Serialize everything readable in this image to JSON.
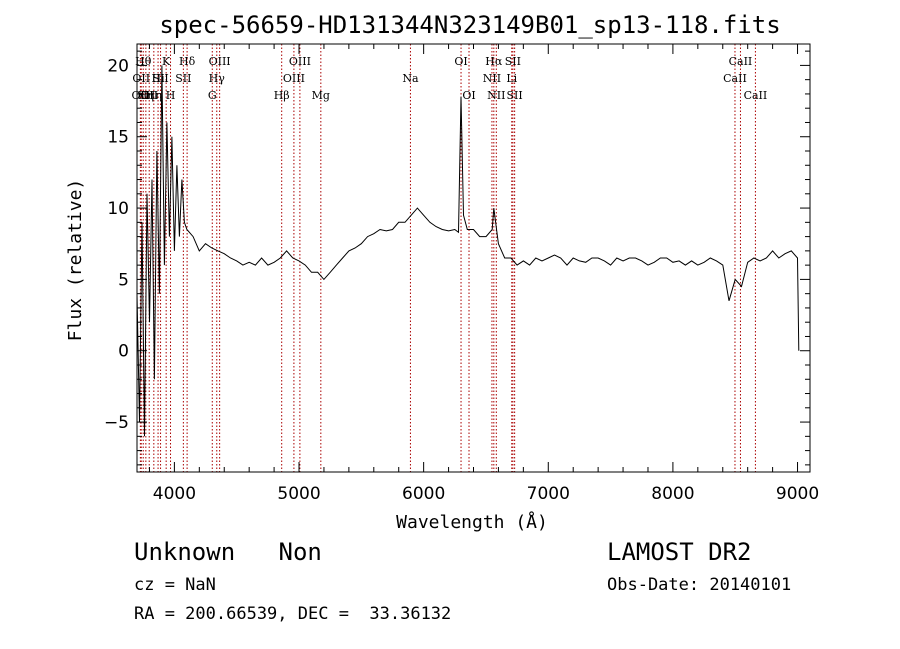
{
  "chart_data": {
    "type": "line",
    "title": "spec-56659-HD131344N323149B01_sp13-118.fits",
    "xlabel": "Wavelength (Å)",
    "ylabel": "Flux (relative)",
    "xlim": [
      3700,
      9100
    ],
    "ylim": [
      -8.5,
      21.5
    ],
    "xticks": [
      4000,
      5000,
      6000,
      7000,
      8000,
      9000
    ],
    "yticks": [
      -5,
      0,
      5,
      10,
      15,
      20
    ],
    "grid": false,
    "line_color": "#000000",
    "marker_color": "#aa0000",
    "series": [
      {
        "x": [
          3700,
          3720,
          3740,
          3760,
          3780,
          3800,
          3820,
          3840,
          3860,
          3880,
          3900,
          3920,
          3940,
          3960,
          3980,
          4000,
          4020,
          4040,
          4060,
          4080,
          4100,
          4150,
          4200,
          4250,
          4300,
          4350,
          4400,
          4450,
          4500,
          4550,
          4600,
          4650,
          4700,
          4750,
          4800,
          4850,
          4900,
          4950,
          5000,
          5050,
          5100,
          5150,
          5200,
          5250,
          5300,
          5350,
          5400,
          5450,
          5500,
          5550,
          5600,
          5650,
          5700,
          5750,
          5800,
          5850,
          5900,
          5950,
          6000,
          6050,
          6100,
          6150,
          6200,
          6250,
          6280,
          6300,
          6320,
          6350,
          6400,
          6450,
          6500,
          6550,
          6563,
          6600,
          6650,
          6700,
          6750,
          6800,
          6850,
          6900,
          6950,
          7000,
          7050,
          7100,
          7150,
          7200,
          7250,
          7300,
          7350,
          7400,
          7450,
          7500,
          7550,
          7600,
          7650,
          7700,
          7750,
          7800,
          7850,
          7900,
          7950,
          8000,
          8050,
          8100,
          8150,
          8200,
          8250,
          8300,
          8350,
          8400,
          8450,
          8500,
          8550,
          8600,
          8650,
          8700,
          8750,
          8800,
          8850,
          8900,
          8950,
          9000,
          9010
        ],
        "y": [
          4,
          -5,
          9,
          -6,
          11,
          2,
          12,
          -2,
          14,
          4,
          20,
          6,
          16,
          8,
          15,
          7,
          13,
          8,
          12,
          9,
          8.5,
          8,
          7,
          7.5,
          7.2,
          7,
          6.8,
          6.5,
          6.3,
          6,
          6.2,
          6,
          6.5,
          6,
          6.2,
          6.5,
          7,
          6.5,
          6.3,
          6,
          5.5,
          5.5,
          5,
          5.5,
          6,
          6.5,
          7,
          7.2,
          7.5,
          8,
          8.2,
          8.5,
          8.4,
          8.5,
          9,
          9,
          9.5,
          10,
          9.5,
          9,
          8.7,
          8.5,
          8.4,
          8.5,
          8.3,
          17.8,
          9.5,
          8.5,
          8.5,
          8,
          8,
          8.5,
          10,
          7.5,
          6.5,
          6.5,
          6,
          6.3,
          6,
          6.5,
          6.3,
          6.5,
          6.7,
          6.5,
          6,
          6.5,
          6.3,
          6.2,
          6.5,
          6.5,
          6.3,
          6,
          6.5,
          6.3,
          6.5,
          6.5,
          6.3,
          6,
          6.2,
          6.5,
          6.5,
          6.2,
          6.3,
          6,
          6.3,
          6,
          6.2,
          6.5,
          6.3,
          6,
          3.5,
          5,
          4.5,
          6.2,
          6.5,
          6.3,
          6.5,
          7,
          6.5,
          6.8,
          7,
          6.5,
          0
        ]
      }
    ],
    "line_markers": [
      {
        "x": 3727,
        "label": "OII",
        "row": 2
      },
      {
        "x": 3734,
        "label": "OII",
        "row": 1
      },
      {
        "x": 3750,
        "label": "Hθ",
        "row": 0
      },
      {
        "x": 3771,
        "label": "Hη",
        "row": 2
      },
      {
        "x": 3798,
        "label": "OII",
        "row": 2
      },
      {
        "x": 3835,
        "label": "Hη",
        "row": 2
      },
      {
        "x": 3869,
        "label": "Hi",
        "row": 1
      },
      {
        "x": 3889,
        "label": "SII",
        "row": 1
      },
      {
        "x": 3934,
        "label": "K",
        "row": 0
      },
      {
        "x": 3969,
        "label": "H",
        "row": 2
      },
      {
        "x": 4072,
        "label": "SII",
        "row": 1
      },
      {
        "x": 4102,
        "label": "Hδ",
        "row": 0
      },
      {
        "x": 4304,
        "label": "G",
        "row": 2
      },
      {
        "x": 4340,
        "label": "Hγ",
        "row": 1
      },
      {
        "x": 4363,
        "label": "OIII",
        "row": 0
      },
      {
        "x": 4861,
        "label": "Hβ",
        "row": 2
      },
      {
        "x": 4959,
        "label": "OIII",
        "row": 1
      },
      {
        "x": 5007,
        "label": "OIII",
        "row": 0
      },
      {
        "x": 5175,
        "label": "Mg",
        "row": 2
      },
      {
        "x": 5894,
        "label": "Na",
        "row": 1
      },
      {
        "x": 6300,
        "label": "OI",
        "row": 0
      },
      {
        "x": 6364,
        "label": "OI",
        "row": 2
      },
      {
        "x": 6548,
        "label": "NII",
        "row": 1
      },
      {
        "x": 6563,
        "label": "Hα",
        "row": 0
      },
      {
        "x": 6583,
        "label": "NII",
        "row": 2
      },
      {
        "x": 6707,
        "label": "Li",
        "row": 1
      },
      {
        "x": 6716,
        "label": "SII",
        "row": 0
      },
      {
        "x": 6730,
        "label": "SII",
        "row": 2
      },
      {
        "x": 8498,
        "label": "CaII",
        "row": 1
      },
      {
        "x": 8542,
        "label": "CaII",
        "row": 0
      },
      {
        "x": 8662,
        "label": "CaII",
        "row": 2
      }
    ]
  },
  "footer": {
    "class_text": "Unknown   Non",
    "cz_text": "cz = NaN",
    "radec_text": "RA = 200.66539, DEC =  33.36132",
    "survey_text": "LAMOST DR2",
    "obsdate_text": "Obs-Date: 20140101"
  }
}
